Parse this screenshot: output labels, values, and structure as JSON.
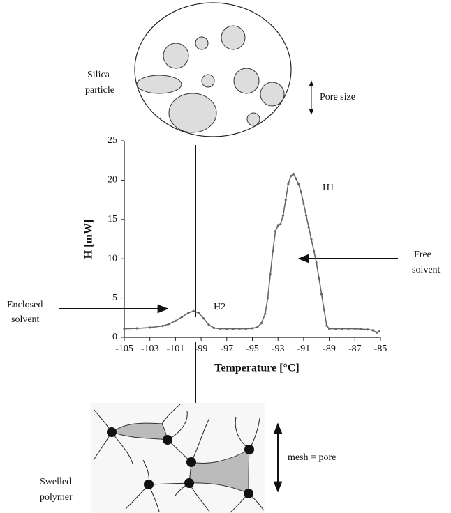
{
  "chart_data": {
    "type": "line",
    "xlabel": "Temperature [°C]",
    "ylabel": "H [mW]",
    "x": [
      -105,
      -104,
      -103,
      -102,
      -101.5,
      -101,
      -100.5,
      -100,
      -99.6,
      -99.2,
      -98.8,
      -98.4,
      -98,
      -97.5,
      -97,
      -96.5,
      -96,
      -95.5,
      -95,
      -94.6,
      -94.3,
      -94,
      -93.8,
      -93.6,
      -93.4,
      -93.2,
      -93,
      -92.8,
      -92.6,
      -92.4,
      -92.2,
      -92,
      -91.8,
      -91.6,
      -91.4,
      -91.2,
      -91,
      -90.8,
      -90.6,
      -90.4,
      -90.2,
      -90,
      -89.8,
      -89.6,
      -89.4,
      -89.2,
      -89,
      -88.5,
      -88,
      -87.5,
      -87,
      -86.5,
      -86,
      -85.6,
      -85.3,
      -85.1
    ],
    "values": [
      1.1,
      1.15,
      1.25,
      1.45,
      1.7,
      2.1,
      2.6,
      3.1,
      3.35,
      3.1,
      2.4,
      1.6,
      1.2,
      1.1,
      1.1,
      1.1,
      1.1,
      1.1,
      1.15,
      1.3,
      1.8,
      3,
      5,
      8,
      11,
      13.5,
      14.2,
      14.4,
      15.5,
      17.5,
      19.5,
      20.5,
      20.8,
      20.2,
      19.5,
      18.5,
      17,
      15.5,
      14,
      12.5,
      11,
      9.5,
      7.5,
      5.5,
      3.5,
      1.5,
      1.1,
      1.1,
      1.1,
      1.1,
      1.1,
      1.05,
      1.0,
      0.9,
      0.6,
      0.75
    ],
    "color": "#666666",
    "xlim": [
      -105,
      -85
    ],
    "xticks": [
      -105,
      -103,
      -101,
      -99,
      -97,
      -95,
      -93,
      -91,
      -89,
      -87,
      -85
    ],
    "ylim": [
      0,
      25
    ],
    "yticks": [
      0,
      5,
      10,
      15,
      20,
      25
    ],
    "annotations": {
      "h1": "H1",
      "h2": "H2",
      "free_solvent": [
        "Free",
        "solvent"
      ],
      "enclosed_solvent": [
        "Enclosed",
        "solvent"
      ]
    }
  },
  "diagram": {
    "silica_particle": [
      "Silica",
      "particle"
    ],
    "pore_size": "Pore size",
    "swelled_polymer": [
      "Swelled",
      "polymer"
    ],
    "mesh_pore": "mesh = pore"
  }
}
